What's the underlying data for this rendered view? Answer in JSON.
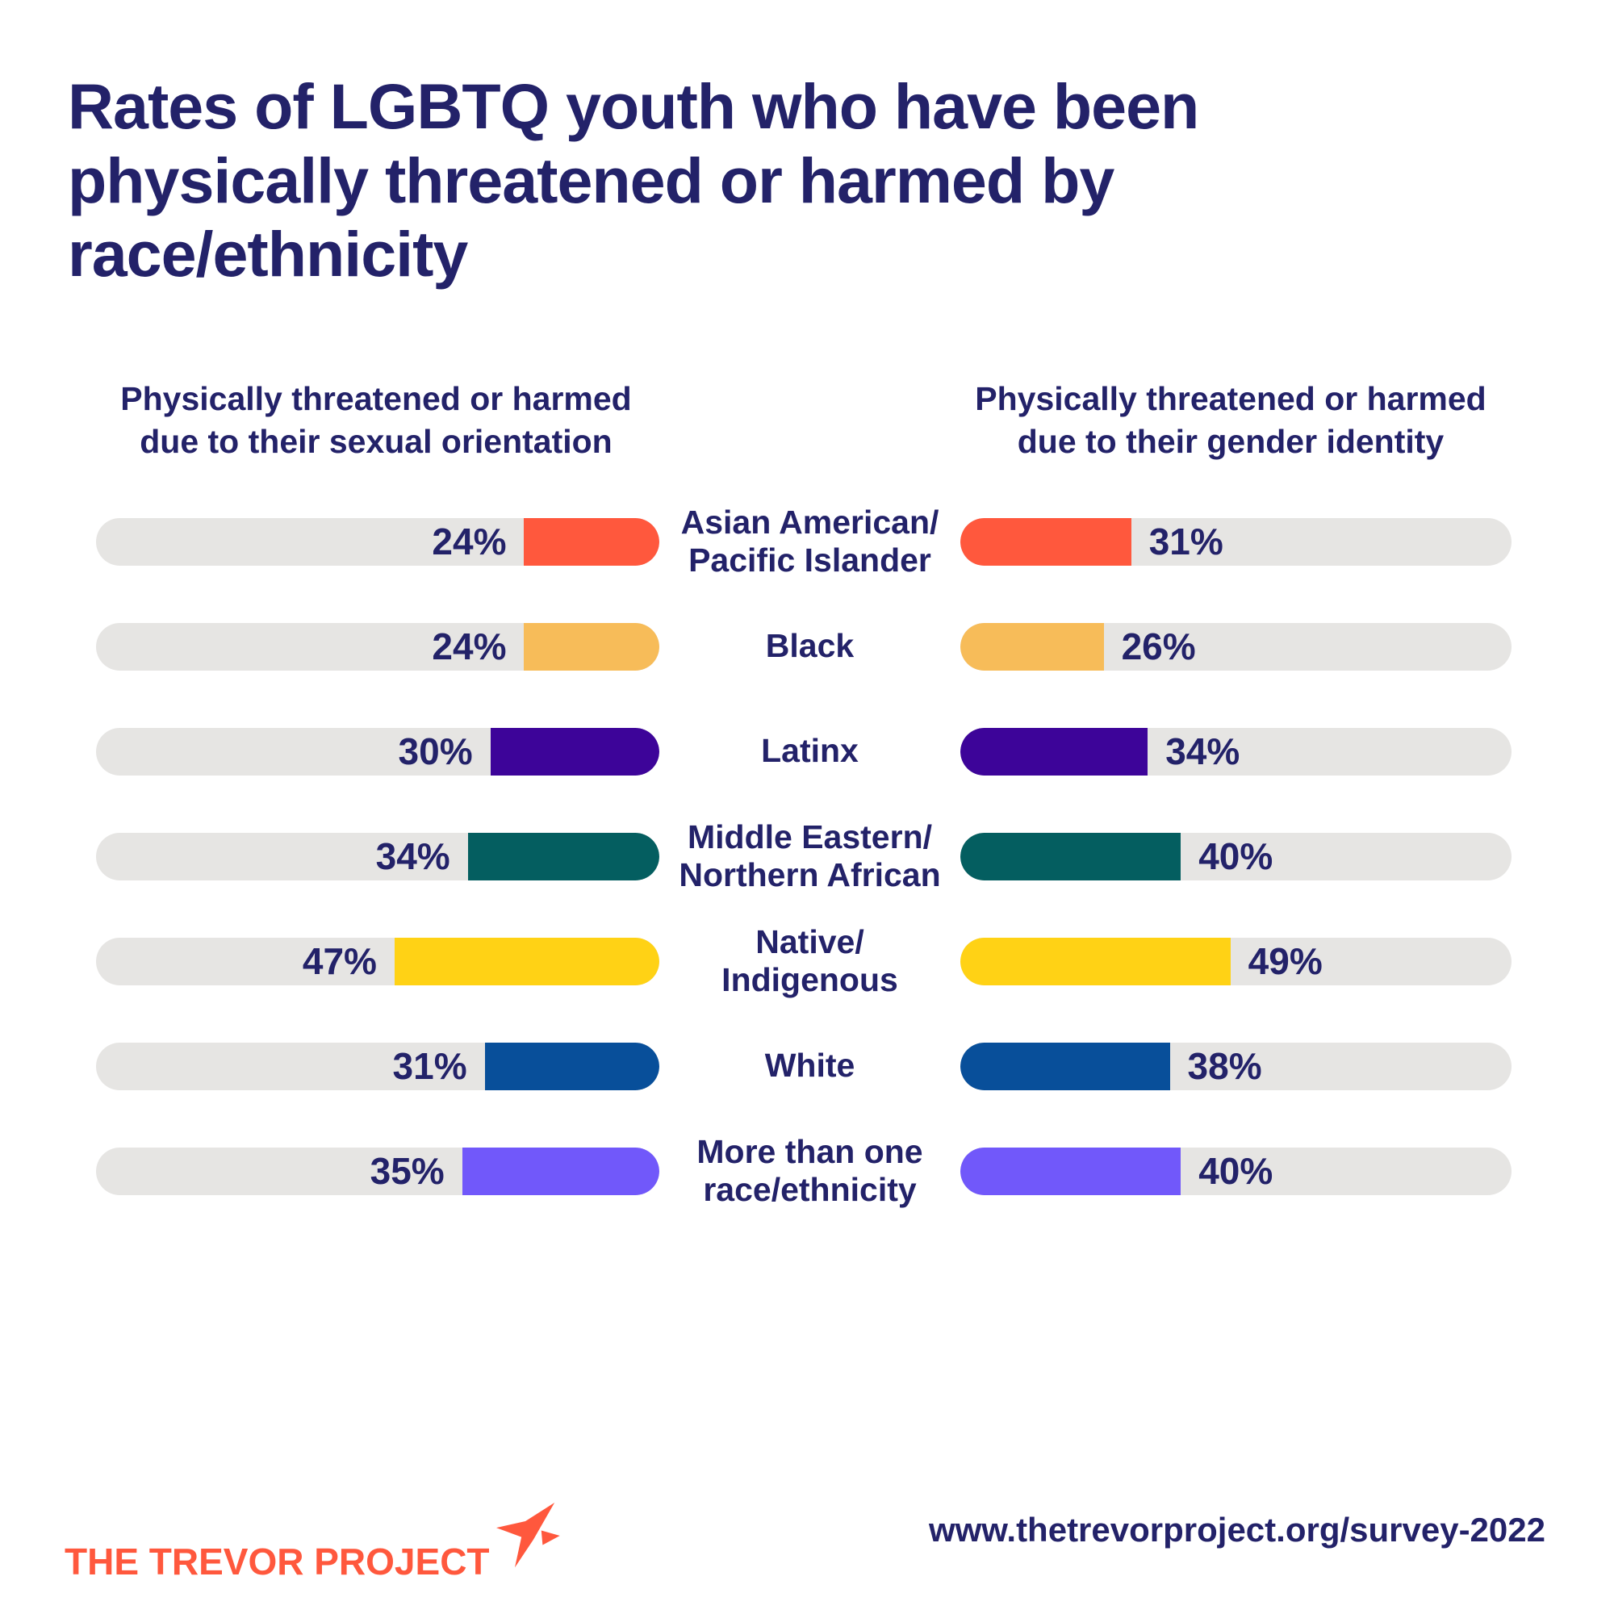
{
  "page": {
    "background": "#FFFFFF",
    "text_color": "#232269",
    "title": "Rates of LGBTQ youth who have been physically threatened or harmed by race/ethnicity",
    "title_lines": [
      "Rates of LGBTQ youth who have been",
      "physically threatened or harmed by",
      "race/ethnicity"
    ],
    "footer": {
      "logo_text": "THE TREVOR PROJECT",
      "logo_color": "#FF583D",
      "url": "www.thetrevorproject.org/survey-2022"
    }
  },
  "chart_data": {
    "type": "bar",
    "orientation": "horizontal-paired",
    "title": "Rates of LGBTQ youth who have been physically threatened or harmed by race/ethnicity",
    "max_value": 100,
    "track_color": "#E6E5E3",
    "grid": false,
    "column_headers": {
      "left_lines": [
        "Physically threatened or harmed",
        "due to their sexual orientation"
      ],
      "right_lines": [
        "Physically threatened or harmed",
        "due to their gender identity"
      ]
    },
    "categories": [
      "Asian American/Pacific Islander",
      "Black",
      "Latinx",
      "Middle Eastern/Northern African",
      "Native/Indigenous",
      "White",
      "More than one race/ethnicity"
    ],
    "series": [
      {
        "name": "Physically threatened or harmed due to their sexual orientation",
        "values": [
          24,
          24,
          30,
          34,
          47,
          31,
          35
        ]
      },
      {
        "name": "Physically threatened or harmed due to their gender identity",
        "values": [
          31,
          26,
          34,
          40,
          49,
          38,
          40
        ]
      }
    ],
    "rows": [
      {
        "label_lines": [
          "Asian American/",
          "Pacific Islander"
        ],
        "left_value": 24,
        "left_text": "24%",
        "right_value": 31,
        "right_text": "31%",
        "color": "#FF583D"
      },
      {
        "label_lines": [
          "Black"
        ],
        "left_value": 24,
        "left_text": "24%",
        "right_value": 26,
        "right_text": "26%",
        "color": "#F7BC59"
      },
      {
        "label_lines": [
          "Latinx"
        ],
        "left_value": 30,
        "left_text": "30%",
        "right_value": 34,
        "right_text": "34%",
        "color": "#3D0499"
      },
      {
        "label_lines": [
          "Middle Eastern/",
          "Northern African"
        ],
        "left_value": 34,
        "left_text": "34%",
        "right_value": 40,
        "right_text": "40%",
        "color": "#045E60"
      },
      {
        "label_lines": [
          "Native/",
          "Indigenous"
        ],
        "left_value": 47,
        "left_text": "47%",
        "right_value": 49,
        "right_text": "49%",
        "color": "#FFD215"
      },
      {
        "label_lines": [
          "White"
        ],
        "left_value": 31,
        "left_text": "31%",
        "right_value": 38,
        "right_text": "38%",
        "color": "#084F9A"
      },
      {
        "label_lines": [
          "More than one",
          "race/ethnicity"
        ],
        "left_value": 35,
        "left_text": "35%",
        "right_value": 40,
        "right_text": "40%",
        "color": "#7158FA"
      }
    ]
  }
}
